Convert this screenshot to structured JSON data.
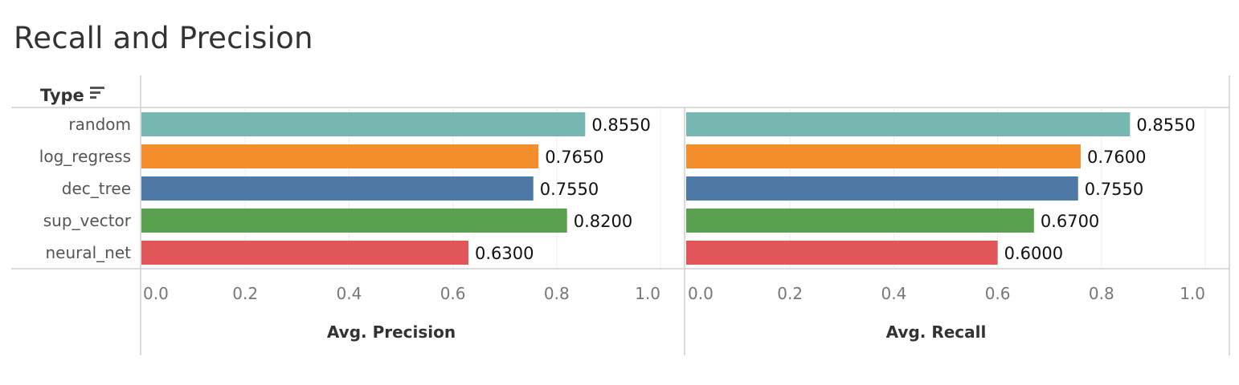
{
  "title": "Recall and Precision",
  "row_header": "Type",
  "chart_data": {
    "type": "bar",
    "orientation": "horizontal",
    "categories": [
      "random",
      "log_regress",
      "dec_tree",
      "sup_vector",
      "neural_net"
    ],
    "colors": [
      "#76b7b2",
      "#f28e2b",
      "#4e79a7",
      "#59a14f",
      "#e15759"
    ],
    "panels": [
      {
        "name": "Avg. Precision",
        "xlabel": "Avg. Precision",
        "values": [
          0.855,
          0.765,
          0.755,
          0.82,
          0.63
        ],
        "value_labels": [
          "0.8550",
          "0.7650",
          "0.7550",
          "0.8200",
          "0.6300"
        ],
        "xlim": [
          0.0,
          1.0
        ],
        "ticks": [
          "0.0",
          "0.2",
          "0.4",
          "0.6",
          "0.8",
          "1.0"
        ]
      },
      {
        "name": "Avg. Recall",
        "xlabel": "Avg. Recall",
        "values": [
          0.855,
          0.76,
          0.755,
          0.67,
          0.6
        ],
        "value_labels": [
          "0.8550",
          "0.7600",
          "0.7550",
          "0.6700",
          "0.6000"
        ],
        "xlim": [
          0.0,
          1.0
        ],
        "ticks": [
          "0.0",
          "0.2",
          "0.4",
          "0.6",
          "0.8",
          "1.0"
        ]
      }
    ],
    "grid": true,
    "legend": "none"
  }
}
